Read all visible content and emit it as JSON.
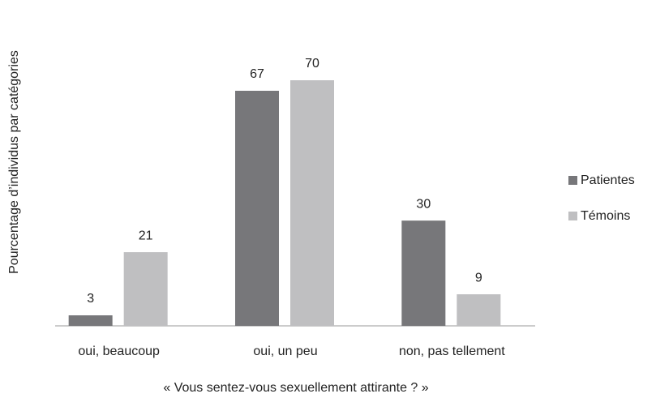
{
  "chart_data": {
    "type": "bar",
    "x_label": "« Vous sentez-vous sexuellement attirante ? »",
    "y_label": "Pourcentage d’individus par catégories",
    "categories": [
      "oui, beaucoup",
      "oui, un peu",
      "non, pas tellement"
    ],
    "series": [
      {
        "name": "Patientes",
        "color": "#77777a",
        "values": [
          3,
          67,
          30
        ]
      },
      {
        "name": "Témoins",
        "color": "#bfbfc1",
        "values": [
          21,
          70,
          9
        ]
      }
    ],
    "ylim": [
      0,
      70
    ],
    "legend": "right"
  }
}
